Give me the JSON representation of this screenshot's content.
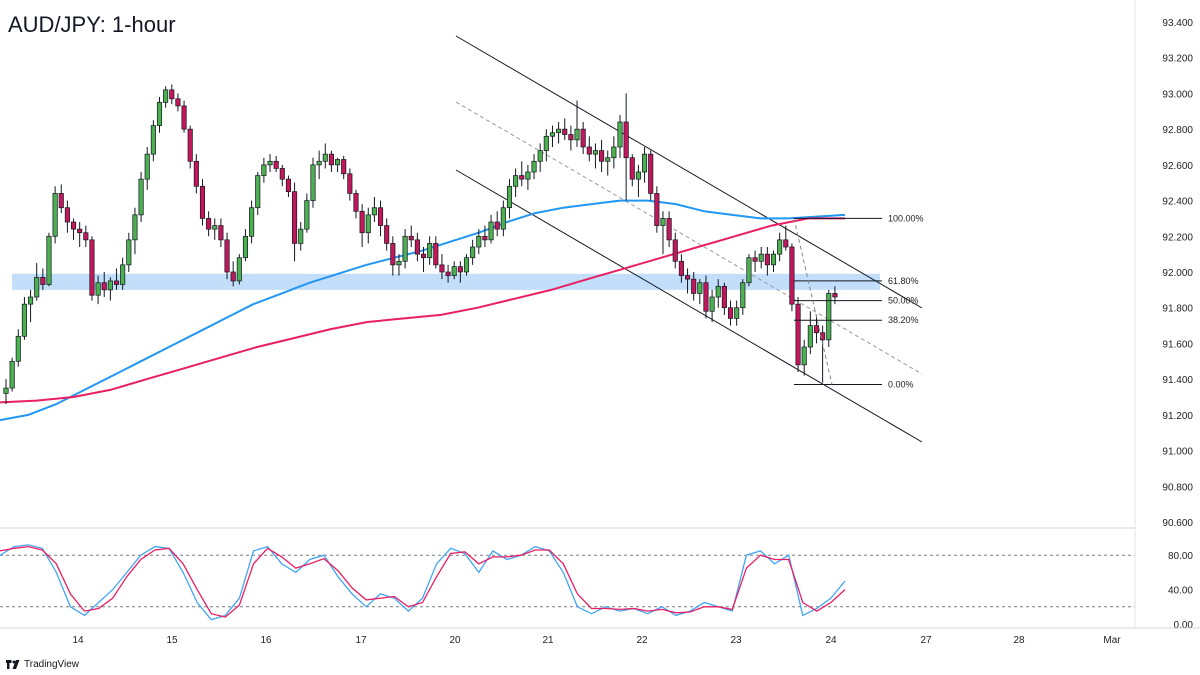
{
  "title": "AUD/JPY: 1-hour",
  "brand": "TradingView",
  "chart_data": {
    "type": "candlestick",
    "title": "AUD/JPY: 1-hour",
    "price_axis": {
      "ticks": [
        "93.400",
        "93.200",
        "93.000",
        "92.800",
        "92.600",
        "92.400",
        "92.200",
        "92.000",
        "91.800",
        "91.600",
        "91.400",
        "91.200",
        "91.000",
        "90.800",
        "90.600"
      ],
      "range": [
        90.6,
        93.4
      ]
    },
    "time_axis": {
      "labels": [
        "14",
        "15",
        "16",
        "17",
        "20",
        "21",
        "22",
        "23",
        "24",
        "27",
        "28",
        "Mar"
      ]
    },
    "candles_ohlc": [
      [
        91.32,
        91.4,
        91.26,
        91.35
      ],
      [
        91.35,
        91.52,
        91.33,
        91.5
      ],
      [
        91.5,
        91.68,
        91.47,
        91.64
      ],
      [
        91.64,
        91.86,
        91.62,
        91.82
      ],
      [
        91.82,
        91.9,
        91.72,
        91.86
      ],
      [
        91.86,
        92.05,
        91.84,
        91.97
      ],
      [
        91.97,
        92.02,
        91.9,
        91.93
      ],
      [
        91.93,
        92.22,
        91.92,
        92.2
      ],
      [
        92.2,
        92.48,
        92.16,
        92.44
      ],
      [
        92.44,
        92.49,
        92.33,
        92.36
      ],
      [
        92.36,
        92.4,
        92.22,
        92.28
      ],
      [
        92.28,
        92.3,
        92.18,
        92.24
      ],
      [
        92.24,
        92.28,
        92.14,
        92.22
      ],
      [
        92.22,
        92.26,
        92.14,
        92.18
      ],
      [
        92.18,
        92.2,
        91.84,
        91.87
      ],
      [
        91.87,
        91.98,
        91.82,
        91.94
      ],
      [
        91.94,
        92.0,
        91.86,
        91.9
      ],
      [
        91.9,
        91.97,
        91.84,
        91.95
      ],
      [
        91.95,
        92.02,
        91.9,
        91.93
      ],
      [
        91.93,
        92.08,
        91.9,
        92.04
      ],
      [
        92.04,
        92.22,
        92.0,
        92.18
      ],
      [
        92.18,
        92.36,
        92.1,
        92.32
      ],
      [
        92.32,
        92.56,
        92.28,
        92.52
      ],
      [
        92.52,
        92.7,
        92.46,
        92.66
      ],
      [
        92.66,
        92.85,
        92.62,
        92.82
      ],
      [
        92.82,
        92.98,
        92.78,
        92.95
      ],
      [
        92.95,
        93.04,
        92.92,
        93.02
      ],
      [
        93.02,
        93.05,
        92.94,
        92.97
      ],
      [
        92.97,
        93.0,
        92.9,
        92.93
      ],
      [
        92.93,
        92.96,
        92.78,
        92.8
      ],
      [
        92.8,
        92.82,
        92.58,
        92.62
      ],
      [
        92.62,
        92.66,
        92.44,
        92.48
      ],
      [
        92.48,
        92.52,
        92.26,
        92.3
      ],
      [
        92.3,
        92.34,
        92.2,
        92.24
      ],
      [
        92.24,
        92.3,
        92.18,
        92.26
      ],
      [
        92.26,
        92.3,
        92.14,
        92.18
      ],
      [
        92.18,
        92.22,
        91.96,
        92.0
      ],
      [
        92.0,
        92.06,
        91.92,
        91.95
      ],
      [
        91.95,
        92.1,
        91.93,
        92.08
      ],
      [
        92.08,
        92.24,
        92.06,
        92.2
      ],
      [
        92.2,
        92.4,
        92.16,
        92.36
      ],
      [
        92.36,
        92.56,
        92.32,
        92.54
      ],
      [
        92.54,
        92.64,
        92.5,
        92.6
      ],
      [
        92.6,
        92.66,
        92.56,
        92.62
      ],
      [
        92.62,
        92.65,
        92.56,
        92.58
      ],
      [
        92.58,
        92.6,
        92.48,
        92.52
      ],
      [
        92.52,
        92.54,
        92.42,
        92.45
      ],
      [
        92.45,
        92.5,
        92.06,
        92.16
      ],
      [
        92.16,
        92.28,
        92.12,
        92.24
      ],
      [
        92.24,
        92.44,
        92.22,
        92.4
      ],
      [
        92.4,
        92.64,
        92.36,
        92.6
      ],
      [
        92.6,
        92.68,
        92.52,
        92.62
      ],
      [
        92.62,
        92.72,
        92.58,
        92.66
      ],
      [
        92.66,
        92.68,
        92.56,
        92.6
      ],
      [
        92.6,
        92.64,
        92.56,
        92.63
      ],
      [
        92.63,
        92.65,
        92.52,
        92.55
      ],
      [
        92.55,
        92.58,
        92.4,
        92.44
      ],
      [
        92.44,
        92.46,
        92.3,
        92.34
      ],
      [
        92.34,
        92.38,
        92.14,
        92.22
      ],
      [
        92.22,
        92.36,
        92.16,
        92.32
      ],
      [
        92.32,
        92.42,
        92.28,
        92.36
      ],
      [
        92.36,
        92.4,
        92.2,
        92.26
      ],
      [
        92.26,
        92.3,
        92.12,
        92.16
      ],
      [
        92.16,
        92.2,
        91.98,
        92.04
      ],
      [
        92.04,
        92.1,
        91.98,
        92.06
      ],
      [
        92.06,
        92.24,
        92.02,
        92.2
      ],
      [
        92.2,
        92.26,
        92.14,
        92.18
      ],
      [
        92.18,
        92.22,
        92.06,
        92.1
      ],
      [
        92.1,
        92.14,
        92.0,
        92.08
      ],
      [
        92.08,
        92.2,
        92.04,
        92.16
      ],
      [
        92.16,
        92.2,
        92.02,
        92.04
      ],
      [
        92.04,
        92.1,
        91.96,
        92.0
      ],
      [
        92.0,
        92.04,
        91.94,
        91.98
      ],
      [
        91.98,
        92.06,
        91.96,
        92.03
      ],
      [
        92.03,
        92.06,
        91.94,
        92.0
      ],
      [
        92.0,
        92.1,
        91.98,
        92.08
      ],
      [
        92.08,
        92.18,
        92.04,
        92.14
      ],
      [
        92.14,
        92.24,
        92.1,
        92.2
      ],
      [
        92.2,
        92.26,
        92.14,
        92.18
      ],
      [
        92.18,
        92.32,
        92.16,
        92.28
      ],
      [
        92.28,
        92.34,
        92.2,
        92.24
      ],
      [
        92.24,
        92.4,
        92.2,
        92.36
      ],
      [
        92.36,
        92.52,
        92.3,
        92.48
      ],
      [
        92.48,
        92.58,
        92.42,
        92.54
      ],
      [
        92.54,
        92.62,
        92.48,
        92.52
      ],
      [
        92.52,
        92.6,
        92.46,
        92.56
      ],
      [
        92.56,
        92.66,
        92.52,
        92.62
      ],
      [
        92.62,
        92.72,
        92.56,
        92.68
      ],
      [
        92.68,
        92.8,
        92.62,
        92.76
      ],
      [
        92.76,
        92.82,
        92.7,
        92.78
      ],
      [
        92.78,
        92.84,
        92.72,
        92.8
      ],
      [
        92.8,
        92.86,
        92.74,
        92.77
      ],
      [
        92.77,
        92.82,
        92.68,
        92.74
      ],
      [
        92.74,
        92.96,
        92.7,
        92.8
      ],
      [
        92.8,
        92.84,
        92.66,
        92.7
      ],
      [
        92.7,
        92.76,
        92.62,
        92.66
      ],
      [
        92.66,
        92.72,
        92.58,
        92.68
      ],
      [
        92.68,
        92.74,
        92.56,
        92.62
      ],
      [
        92.62,
        92.68,
        92.54,
        92.64
      ],
      [
        92.64,
        92.76,
        92.58,
        92.7
      ],
      [
        92.7,
        92.88,
        92.64,
        92.84
      ],
      [
        92.84,
        93.0,
        92.4,
        92.64
      ],
      [
        92.64,
        92.66,
        92.48,
        92.52
      ],
      [
        92.52,
        92.6,
        92.42,
        92.56
      ],
      [
        92.56,
        92.7,
        92.5,
        92.66
      ],
      [
        92.66,
        92.68,
        92.4,
        92.44
      ],
      [
        92.44,
        92.48,
        92.22,
        92.26
      ],
      [
        92.26,
        92.34,
        92.1,
        92.3
      ],
      [
        92.3,
        92.34,
        92.14,
        92.18
      ],
      [
        92.18,
        92.22,
        92.02,
        92.06
      ],
      [
        92.06,
        92.1,
        91.94,
        91.98
      ],
      [
        91.98,
        92.02,
        91.88,
        91.96
      ],
      [
        91.96,
        92.0,
        91.84,
        91.88
      ],
      [
        91.88,
        91.96,
        91.82,
        91.94
      ],
      [
        91.94,
        91.98,
        91.74,
        91.78
      ],
      [
        91.78,
        91.9,
        91.72,
        91.86
      ],
      [
        91.86,
        91.96,
        91.8,
        91.92
      ],
      [
        91.92,
        91.94,
        91.76,
        91.8
      ],
      [
        91.8,
        91.84,
        91.7,
        91.74
      ],
      [
        91.74,
        91.84,
        91.7,
        91.8
      ],
      [
        91.8,
        91.96,
        91.76,
        91.94
      ],
      [
        91.94,
        92.1,
        91.92,
        92.08
      ],
      [
        92.08,
        92.12,
        92.0,
        92.06
      ],
      [
        92.06,
        92.14,
        92.02,
        92.1
      ],
      [
        92.1,
        92.14,
        91.98,
        92.04
      ],
      [
        92.04,
        92.12,
        92.0,
        92.1
      ],
      [
        92.1,
        92.22,
        92.06,
        92.18
      ],
      [
        92.18,
        92.26,
        92.12,
        92.14
      ],
      [
        92.14,
        92.16,
        91.78,
        91.82
      ],
      [
        91.82,
        91.86,
        91.44,
        91.48
      ],
      [
        91.48,
        91.62,
        91.42,
        91.58
      ],
      [
        91.58,
        91.78,
        91.54,
        91.7
      ],
      [
        91.7,
        91.76,
        91.6,
        91.66
      ],
      [
        91.66,
        91.7,
        91.38,
        91.62
      ],
      [
        91.62,
        91.9,
        91.58,
        91.88
      ],
      [
        91.88,
        91.92,
        91.82,
        91.86
      ]
    ],
    "series": [
      {
        "name": "",
        "color": "#2196f3",
        "values": [
          91.17,
          91.2,
          91.26,
          91.34,
          91.42,
          91.5,
          91.58,
          91.66,
          91.74,
          91.82,
          91.88,
          91.94,
          91.99,
          92.04,
          92.08,
          92.12,
          92.17,
          92.22,
          92.28,
          92.33,
          92.36,
          92.38,
          92.4,
          92.4,
          92.38,
          92.34,
          92.32,
          92.3,
          92.3,
          92.31,
          92.32
        ]
      },
      {
        "name": "",
        "color": "#e91e63",
        "values": [
          91.27,
          91.28,
          91.3,
          91.34,
          91.4,
          91.46,
          91.52,
          91.58,
          91.63,
          91.68,
          91.72,
          91.74,
          91.76,
          91.8,
          91.85,
          91.9,
          91.96,
          92.02,
          92.08,
          92.14,
          92.2,
          92.26,
          92.3,
          92.3
        ]
      }
    ],
    "support_zone": [
      91.9,
      91.99
    ],
    "fib_levels": [
      {
        "label": "100.00%",
        "price": 92.3
      },
      {
        "label": "61.80%",
        "price": 91.95
      },
      {
        "label": "50.00%",
        "price": 91.84
      },
      {
        "label": "38.20%",
        "price": 91.73
      },
      {
        "label": "0.00%",
        "price": 91.37
      }
    ],
    "oscillator": {
      "ticks": [
        "80.00",
        "40.00",
        "0.00"
      ],
      "overbought": 80,
      "oversold": 20,
      "k": [
        80,
        90,
        92,
        88,
        60,
        20,
        10,
        25,
        40,
        60,
        80,
        90,
        88,
        60,
        25,
        5,
        10,
        30,
        85,
        90,
        70,
        60,
        75,
        80,
        55,
        35,
        20,
        35,
        30,
        15,
        30,
        70,
        88,
        82,
        60,
        85,
        75,
        80,
        90,
        85,
        60,
        20,
        12,
        20,
        15,
        18,
        12,
        20,
        10,
        15,
        25,
        20,
        15,
        80,
        85,
        70,
        80,
        10,
        18,
        30,
        50
      ],
      "d": [
        85,
        88,
        90,
        86,
        70,
        35,
        15,
        18,
        30,
        55,
        75,
        86,
        88,
        70,
        40,
        12,
        8,
        22,
        70,
        88,
        78,
        65,
        70,
        76,
        62,
        42,
        28,
        30,
        32,
        20,
        25,
        55,
        82,
        84,
        70,
        78,
        78,
        80,
        86,
        86,
        70,
        35,
        18,
        18,
        17,
        18,
        15,
        17,
        13,
        14,
        20,
        20,
        17,
        65,
        80,
        75,
        75,
        25,
        15,
        25,
        40
      ]
    }
  }
}
